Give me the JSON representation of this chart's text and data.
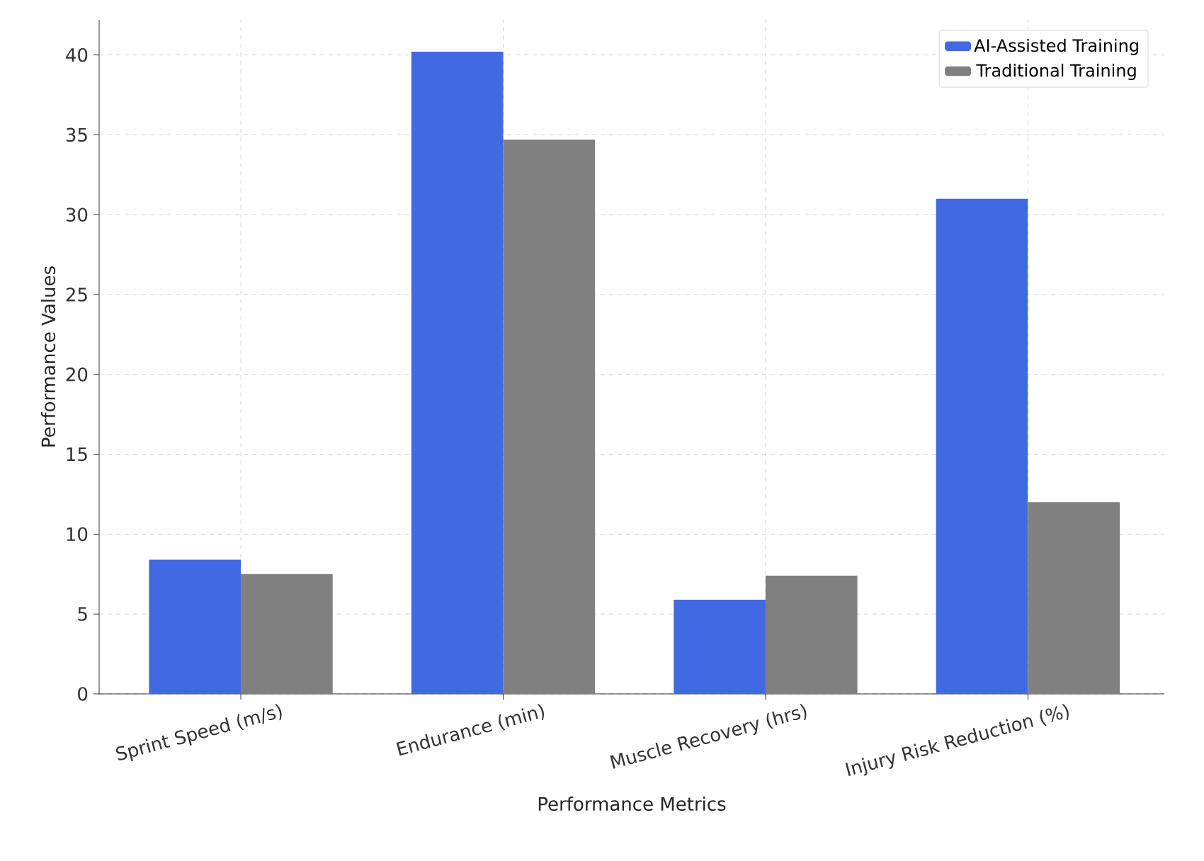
{
  "chart_data": {
    "type": "bar",
    "xlabel": "Performance Metrics",
    "ylabel": "Performance Values",
    "categories": [
      "Sprint Speed (m/s)",
      "Endurance (min)",
      "Muscle Recovery (hrs)",
      "Injury Risk Reduction (%)"
    ],
    "series": [
      {
        "name": "AI-Assisted Training",
        "color": "#4169e1",
        "values": [
          8.4,
          40.2,
          5.9,
          31.0
        ]
      },
      {
        "name": "Traditional Training",
        "color": "#808080",
        "values": [
          7.5,
          34.7,
          7.4,
          12.0
        ]
      }
    ],
    "ylim": [
      0,
      42.2
    ],
    "yticks": [
      0,
      5,
      10,
      15,
      20,
      25,
      30,
      35,
      40
    ],
    "grid": true,
    "legend": "top right"
  }
}
